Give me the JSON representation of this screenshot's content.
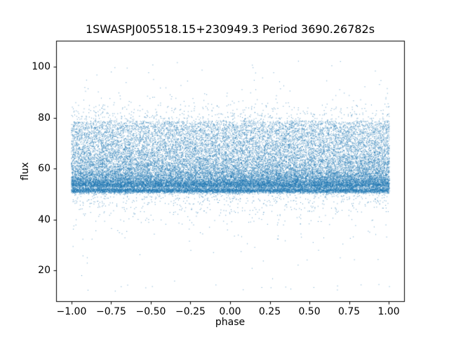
{
  "chart_data": {
    "type": "scatter",
    "title": "1SWASPJ005518.15+230949.3 Period 3690.26782s",
    "xlabel": "phase",
    "ylabel": "flux",
    "xlim": [
      -1.097,
      1.097
    ],
    "ylim": [
      7.9,
      110.3
    ],
    "xticks": [
      {
        "v": -1.0,
        "label": "−1.00"
      },
      {
        "v": -0.75,
        "label": "−0.75"
      },
      {
        "v": -0.5,
        "label": "−0.50"
      },
      {
        "v": -0.25,
        "label": "−0.25"
      },
      {
        "v": 0.0,
        "label": "0.00"
      },
      {
        "v": 0.25,
        "label": "0.25"
      },
      {
        "v": 0.5,
        "label": "0.50"
      },
      {
        "v": 0.75,
        "label": "0.75"
      },
      {
        "v": 1.0,
        "label": "1.00"
      }
    ],
    "yticks": [
      {
        "v": 20,
        "label": "20"
      },
      {
        "v": 40,
        "label": "40"
      },
      {
        "v": 60,
        "label": "60"
      },
      {
        "v": 80,
        "label": "80"
      },
      {
        "v": 100,
        "label": "100"
      }
    ],
    "marker_color": "#1f77b4",
    "marker_alpha": 0.7,
    "marker_size_px": 1,
    "background": "#ffffff",
    "spine_color": "#000000",
    "n_points_estimate": 37000,
    "description": "Folded photometric light curve: dense scatter band between flux ~51 and ~79 with diagonal decaying streaks repeating every 1.0 in phase, a very dense horizontal band at flux ~51, sparse outliers down to ~12 and up to ~103, phase range -1.0 to 1.0.",
    "point_cloud": {
      "seed": 20240907,
      "x_range": [
        -1.003,
        1.003
      ],
      "streaks": {
        "count": 24000,
        "families": 90,
        "base": 51.6,
        "amplitude": 27.2,
        "decay": 3.0,
        "noise_sigma": 0.9
      },
      "uniform_fill": {
        "count": 6000,
        "y_min": 52.0,
        "y_max": 79.0
      },
      "bottom_band": {
        "count": 6000,
        "y_center": 51.5,
        "sigma": 0.5
      },
      "low_outliers": {
        "count": 700,
        "start": 50.5,
        "scale_main": 4.0,
        "scale_far": 14.0,
        "far_fraction": 0.2,
        "y_floor": 11.8
      },
      "high_outliers": {
        "count": 480,
        "start": 79.5,
        "scale_main": 3.5,
        "scale_far": 8.0,
        "far_fraction": 0.2,
        "y_ceiling": 103.5
      }
    }
  }
}
